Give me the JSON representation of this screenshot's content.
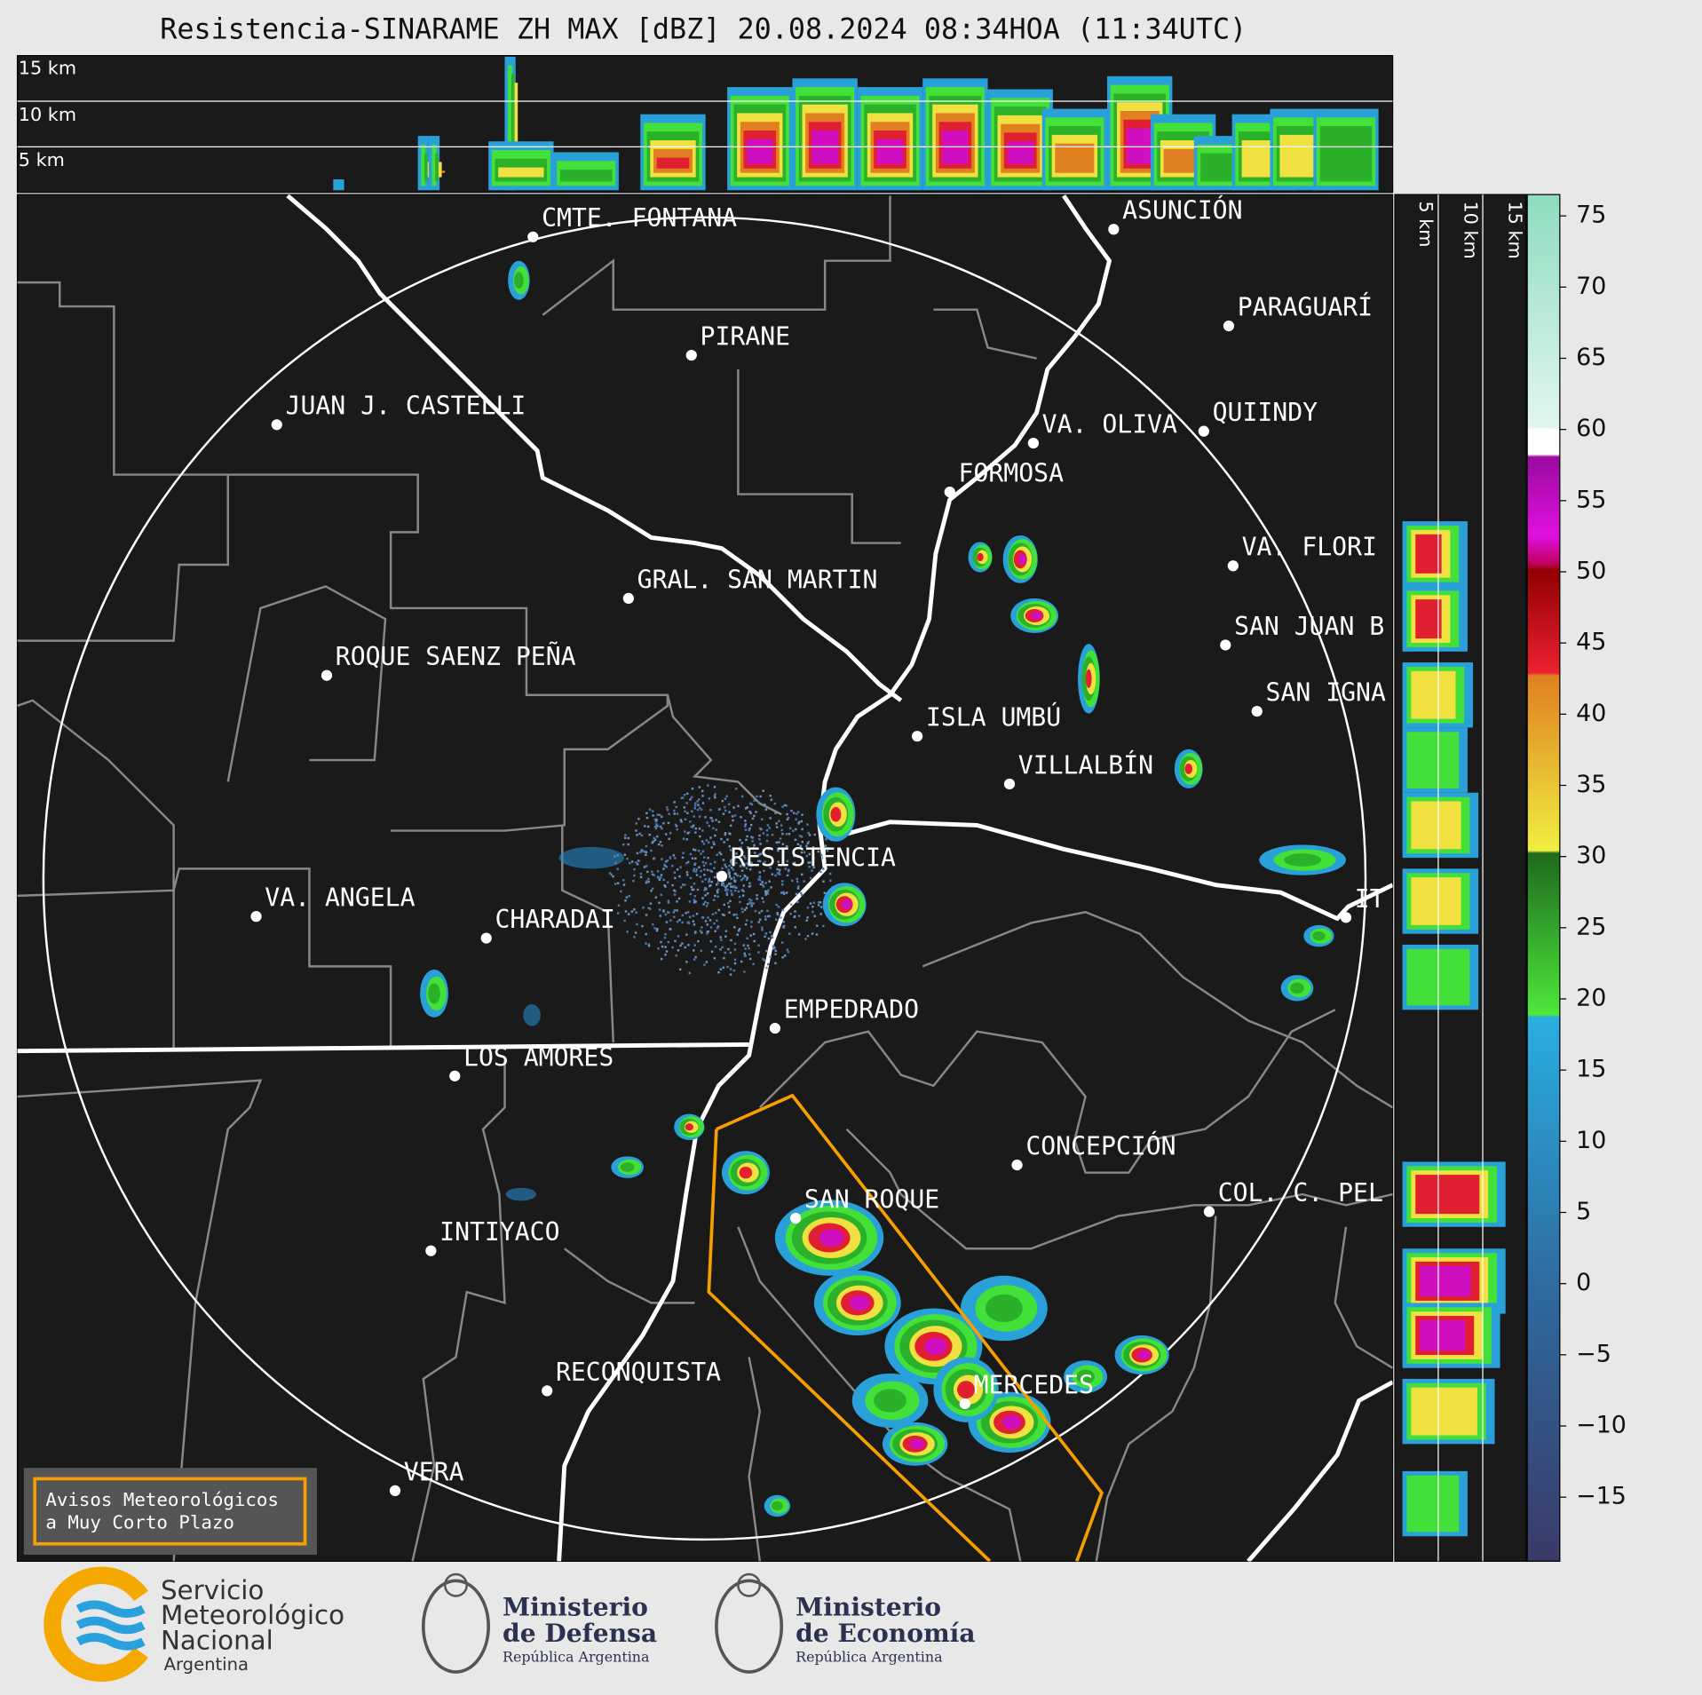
{
  "title": "Resistencia-SINARAME ZH MAX [dBZ] 20.08.2024 08:34HOA (11:34UTC)",
  "cross_section": {
    "height_labels": [
      "15 km",
      "10 km",
      "5 km"
    ]
  },
  "side_panel": {
    "height_labels": [
      "5 km",
      "10 km",
      "15 km"
    ]
  },
  "colorbar": {
    "lim": [
      -19.5,
      76.5
    ],
    "ticks": [
      75,
      70,
      65,
      60,
      55,
      50,
      45,
      40,
      35,
      30,
      25,
      20,
      15,
      10,
      5,
      0,
      {
        "value": -5,
        "label": "−5"
      },
      {
        "value": -10,
        "label": "−10"
      },
      {
        "value": -15,
        "label": "−15"
      }
    ]
  },
  "cities": [
    "CMTE. FONTANA",
    "ASUNCIÓN",
    "PARAGUARÍ",
    "PIRANE",
    "JUAN J. CASTELLI",
    "VA. OLIVA",
    "QUIINDY",
    "FORMOSA",
    "VA. FLORI",
    "GRAL. SAN MARTIN",
    "SAN JUAN B",
    "ROQUE SAENZ PEÑA",
    "SAN IGNA",
    "ISLA UMBÚ",
    "VILLALBÍN",
    "RESISTENCIA",
    "VA. ANGELA",
    "IT",
    "CHARADAI",
    "EMPEDRADO",
    "LOS AMORES",
    "CONCEPCIÓN",
    "COL. C. PEL",
    "SAN ROQUE",
    "INTIYACO",
    "RECONQUISTA",
    "MERCEDES",
    "VERA"
  ],
  "warning_box": {
    "lines": [
      "Avisos Meteorológicos",
      "a Muy Corto Plazo"
    ]
  },
  "logos": [
    {
      "lines": [
        "Servicio",
        "Meteorológico",
        "Nacional"
      ],
      "sub": "Argentina"
    },
    {
      "lines": [
        "Ministerio",
        "de Defensa"
      ],
      "sub": "República Argentina"
    },
    {
      "lines": [
        "Ministerio",
        "de Economía"
      ],
      "sub": "República Argentina"
    }
  ]
}
